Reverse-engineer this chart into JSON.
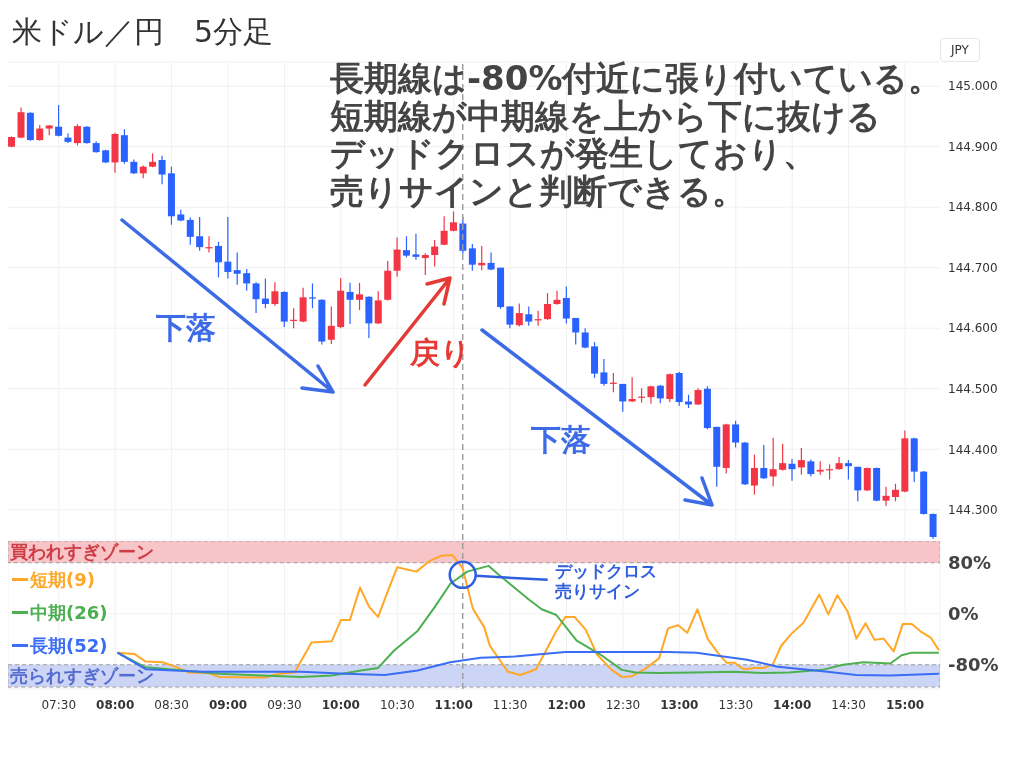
{
  "chart_data": [
    {
      "type": "candlestick",
      "title": "米ドル／円　5分足",
      "ylabel": "JPY",
      "annotations": [
        "長期線は-80%付近に張り付いている。",
        "短期線が中期線を上から下に抜ける",
        "デッドクロスが発生しており、",
        "売りサインと判断できる。",
        "下落",
        "戻り",
        "下落"
      ],
      "x": [
        7.083,
        7.167,
        7.25,
        7.333,
        7.417,
        7.5,
        7.583,
        7.667,
        7.75,
        7.833,
        7.917,
        8.0,
        8.083,
        8.167,
        8.25,
        8.333,
        8.417,
        8.5,
        8.583,
        8.667,
        8.75,
        8.833,
        8.917,
        9.0,
        9.083,
        9.167,
        9.25,
        9.333,
        9.417,
        9.5,
        9.583,
        9.667,
        9.75,
        9.833,
        9.917,
        10.0,
        10.083,
        10.167,
        10.25,
        10.333,
        10.417,
        10.5,
        10.583,
        10.667,
        10.75,
        10.833,
        10.917,
        11.0,
        11.083,
        11.167,
        11.25,
        11.333,
        11.417,
        11.5,
        11.583,
        11.667,
        11.75,
        11.833,
        11.917,
        12.0,
        12.083,
        12.167,
        12.25,
        12.333,
        12.417,
        12.5,
        12.583,
        12.667,
        12.75,
        12.833,
        12.917,
        13.0,
        13.083,
        13.167,
        13.25,
        13.333,
        13.417,
        13.5,
        13.583,
        13.667,
        13.75,
        13.833,
        13.917,
        14.0,
        14.083,
        14.167,
        14.25,
        14.333,
        14.417,
        14.5,
        14.583,
        14.667,
        14.75,
        14.833,
        14.917,
        15.0,
        15.083,
        15.167,
        15.25
      ],
      "ohlc": [
        [
          144.9,
          144.917,
          144.899,
          144.916
        ],
        [
          144.915,
          144.965,
          144.914,
          144.957
        ],
        [
          144.956,
          144.957,
          144.91,
          144.911
        ],
        [
          144.911,
          144.936,
          144.91,
          144.93
        ],
        [
          144.93,
          144.936,
          144.919,
          144.935
        ],
        [
          144.933,
          144.969,
          144.917,
          144.918
        ],
        [
          144.915,
          144.922,
          144.906,
          144.908
        ],
        [
          144.906,
          144.937,
          144.902,
          144.934
        ],
        [
          144.933,
          144.934,
          144.905,
          144.906
        ],
        [
          144.906,
          144.909,
          144.89,
          144.891
        ],
        [
          144.894,
          144.895,
          144.873,
          144.874
        ],
        [
          144.874,
          144.923,
          144.857,
          144.921
        ],
        [
          144.919,
          144.929,
          144.872,
          144.875
        ],
        [
          144.875,
          144.879,
          144.855,
          144.856
        ],
        [
          144.856,
          144.869,
          144.848,
          144.867
        ],
        [
          144.867,
          144.889,
          144.866,
          144.875
        ],
        [
          144.878,
          144.885,
          144.838,
          144.854
        ],
        [
          144.856,
          144.867,
          144.771,
          144.785
        ],
        [
          144.788,
          144.796,
          144.777,
          144.778
        ],
        [
          144.779,
          144.783,
          144.738,
          144.751
        ],
        [
          144.752,
          144.784,
          144.728,
          144.734
        ],
        [
          144.732,
          144.752,
          144.725,
          144.734
        ],
        [
          144.736,
          144.743,
          144.684,
          144.709
        ],
        [
          144.71,
          144.784,
          144.682,
          144.693
        ],
        [
          144.696,
          144.725,
          144.672,
          144.69
        ],
        [
          144.691,
          144.698,
          144.662,
          144.674
        ],
        [
          144.674,
          144.676,
          144.625,
          144.648
        ],
        [
          144.649,
          144.682,
          144.633,
          144.64
        ],
        [
          144.64,
          144.676,
          144.637,
          144.661
        ],
        [
          144.66,
          144.661,
          144.602,
          144.611
        ],
        [
          144.613,
          144.633,
          144.6,
          144.614
        ],
        [
          144.611,
          144.667,
          144.61,
          144.651
        ],
        [
          144.651,
          144.674,
          144.633,
          144.649
        ],
        [
          144.647,
          144.648,
          144.573,
          144.578
        ],
        [
          144.581,
          144.636,
          144.574,
          144.604
        ],
        [
          144.602,
          144.683,
          144.6,
          144.662
        ],
        [
          144.66,
          144.675,
          144.607,
          144.647
        ],
        [
          144.647,
          144.675,
          144.63,
          144.656
        ],
        [
          144.652,
          144.653,
          144.584,
          144.608
        ],
        [
          144.608,
          144.661,
          144.607,
          144.646
        ],
        [
          144.647,
          144.711,
          144.646,
          144.695
        ],
        [
          144.695,
          144.75,
          144.685,
          144.73
        ],
        [
          144.729,
          144.752,
          144.717,
          144.72
        ],
        [
          144.722,
          144.756,
          144.713,
          144.718
        ],
        [
          144.716,
          144.724,
          144.688,
          144.721
        ],
        [
          144.721,
          144.746,
          144.702,
          144.735
        ],
        [
          144.738,
          144.785,
          144.737,
          144.761
        ],
        [
          144.761,
          144.793,
          144.76,
          144.775
        ],
        [
          144.773,
          144.784,
          144.723,
          144.728
        ],
        [
          144.732,
          144.739,
          144.695,
          144.705
        ],
        [
          144.704,
          144.736,
          144.696,
          144.708
        ],
        [
          144.708,
          144.725,
          144.696,
          144.697
        ],
        [
          144.7,
          144.7,
          144.632,
          144.635
        ],
        [
          144.636,
          144.636,
          144.6,
          144.606
        ],
        [
          144.605,
          144.641,
          144.603,
          144.625
        ],
        [
          144.623,
          144.636,
          144.604,
          144.611
        ],
        [
          144.613,
          144.629,
          144.604,
          144.615
        ],
        [
          144.615,
          144.658,
          144.614,
          144.64
        ],
        [
          144.64,
          144.662,
          144.639,
          144.647
        ],
        [
          144.65,
          144.669,
          144.608,
          144.616
        ],
        [
          144.617,
          144.617,
          144.573,
          144.593
        ],
        [
          144.593,
          144.6,
          144.567,
          144.568
        ],
        [
          144.57,
          144.577,
          144.518,
          144.525
        ],
        [
          144.527,
          144.549,
          144.505,
          144.508
        ],
        [
          144.509,
          144.526,
          144.494,
          144.51
        ],
        [
          144.508,
          144.508,
          144.462,
          144.479
        ],
        [
          144.479,
          144.519,
          144.478,
          144.483
        ],
        [
          144.485,
          144.501,
          144.477,
          144.487
        ],
        [
          144.486,
          144.505,
          144.475,
          144.504
        ],
        [
          144.505,
          144.506,
          144.476,
          144.484
        ],
        [
          144.483,
          144.525,
          144.478,
          144.524
        ],
        [
          144.526,
          144.528,
          144.472,
          144.478
        ],
        [
          144.479,
          144.49,
          144.468,
          144.474
        ],
        [
          144.474,
          144.501,
          144.473,
          144.498
        ],
        [
          144.5,
          144.504,
          144.433,
          144.435
        ],
        [
          144.437,
          144.437,
          144.338,
          144.371
        ],
        [
          144.369,
          144.442,
          144.36,
          144.441
        ],
        [
          144.441,
          144.447,
          144.403,
          144.411
        ],
        [
          144.411,
          144.412,
          144.341,
          144.342
        ],
        [
          144.34,
          144.391,
          144.325,
          144.369
        ],
        [
          144.369,
          144.407,
          144.351,
          144.352
        ],
        [
          144.355,
          144.419,
          144.339,
          144.367
        ],
        [
          144.366,
          144.409,
          144.365,
          144.377
        ],
        [
          144.376,
          144.384,
          144.348,
          144.367
        ],
        [
          144.37,
          144.402,
          144.358,
          144.382
        ],
        [
          144.38,
          144.383,
          144.355,
          144.359
        ],
        [
          144.363,
          144.38,
          144.358,
          144.366
        ],
        [
          144.365,
          144.375,
          144.35,
          144.367
        ],
        [
          144.367,
          144.387,
          144.366,
          144.377
        ],
        [
          144.377,
          144.382,
          144.35,
          144.372
        ],
        [
          144.371,
          144.371,
          144.314,
          144.332
        ],
        [
          144.332,
          144.37,
          144.331,
          144.369
        ],
        [
          144.369,
          144.37,
          144.314,
          144.315
        ],
        [
          144.315,
          144.338,
          144.306,
          144.323
        ],
        [
          144.321,
          144.343,
          144.314,
          144.333
        ],
        [
          144.33,
          144.431,
          144.329,
          144.418
        ],
        [
          144.418,
          144.419,
          144.346,
          144.363
        ],
        [
          144.363,
          144.364,
          144.292,
          144.293
        ],
        [
          144.293,
          144.294,
          144.252,
          144.255
        ]
      ],
      "colors": [
        "#f23645",
        "#f23645",
        "#2962ff",
        "#f23645",
        "#f23645",
        "#2962ff",
        "#2962ff",
        "#f23645",
        "#2962ff",
        "#2962ff",
        "#2962ff",
        "#f23645",
        "#2962ff",
        "#2962ff",
        "#f23645",
        "#f23645",
        "#2962ff",
        "#2962ff",
        "#2962ff",
        "#2962ff",
        "#2962ff",
        "#f23645",
        "#2962ff",
        "#2962ff",
        "#2962ff",
        "#2962ff",
        "#2962ff",
        "#2962ff",
        "#f23645",
        "#2962ff",
        "#f23645",
        "#f23645",
        "#2962ff",
        "#2962ff",
        "#f23645",
        "#f23645",
        "#2962ff",
        "#f23645",
        "#2962ff",
        "#f23645",
        "#f23645",
        "#f23645",
        "#2962ff",
        "#2962ff",
        "#f23645",
        "#f23645",
        "#f23645",
        "#f23645",
        "#2962ff",
        "#2962ff",
        "#f23645",
        "#2962ff",
        "#2962ff",
        "#2962ff",
        "#f23645",
        "#2962ff",
        "#f23645",
        "#f23645",
        "#f23645",
        "#2962ff",
        "#2962ff",
        "#2962ff",
        "#2962ff",
        "#2962ff",
        "#f23645",
        "#2962ff",
        "#f23645",
        "#f23645",
        "#f23645",
        "#2962ff",
        "#f23645",
        "#2962ff",
        "#2962ff",
        "#f23645",
        "#2962ff",
        "#2962ff",
        "#f23645",
        "#2962ff",
        "#2962ff",
        "#f23645",
        "#2962ff",
        "#f23645",
        "#f23645",
        "#2962ff",
        "#f23645",
        "#2962ff",
        "#f23645",
        "#f23645",
        "#f23645",
        "#2962ff",
        "#2962ff",
        "#f23645",
        "#2962ff",
        "#f23645",
        "#f23645",
        "#f23645",
        "#2962ff",
        "#2962ff",
        "#2962ff"
      ],
      "xlim": [
        7.05,
        15.31
      ],
      "ylim": [
        144.25,
        145.04
      ],
      "xticks": [
        7.5,
        8,
        8.5,
        9,
        9.5,
        10,
        10.5,
        11,
        11.5,
        12,
        12.5,
        13,
        13.5,
        14,
        14.5,
        15
      ],
      "yticks": [
        {
          "value": 144.3,
          "label": "144.300"
        },
        {
          "value": 144.4,
          "label": "144.400"
        },
        {
          "value": 144.5,
          "label": "144.500"
        },
        {
          "value": 144.6,
          "label": "144.600"
        },
        {
          "value": 144.7,
          "label": "144.700"
        },
        {
          "value": 144.8,
          "label": "144.800"
        },
        {
          "value": 144.9,
          "label": "144.900"
        },
        {
          "value": 145.0,
          "label": "145.000"
        }
      ],
      "tick_labels": "y",
      "grid": true,
      "ref_lines": [
        {
          "axis": "x",
          "value": 11.08,
          "line_style": "dashed",
          "color": "#9e9e9e"
        }
      ]
    },
    {
      "type": "line",
      "legend": "top left",
      "marker": "none",
      "line_style": "solid",
      "grid": true,
      "series": [
        {
          "name": "短期(9)",
          "color": "#ffa726",
          "x": [
            8.02,
            8.17,
            8.27,
            8.42,
            8.53,
            8.65,
            8.83,
            8.92,
            9.33,
            9.45,
            9.59,
            9.74,
            9.92,
            10.0,
            10.08,
            10.17,
            10.25,
            10.33,
            10.42,
            10.5,
            10.67,
            10.78,
            10.89,
            10.99,
            11.08,
            11.17,
            11.27,
            11.32,
            11.48,
            11.59,
            11.73,
            11.91,
            11.99,
            12.07,
            12.17,
            12.27,
            12.4,
            12.49,
            12.58,
            12.7,
            12.82,
            12.9,
            12.99,
            13.07,
            13.16,
            13.25,
            13.34,
            13.42,
            13.49,
            13.57,
            13.67,
            13.75,
            13.83,
            13.9,
            13.99,
            14.1,
            14.24,
            14.32,
            14.4,
            14.49,
            14.57,
            14.65,
            14.73,
            14.81,
            14.9,
            14.98,
            15.06,
            15.14,
            15.23,
            15.3
          ],
          "values": [
            -61,
            -63,
            -75,
            -76,
            -83,
            -92,
            -93,
            -99,
            -100,
            -94,
            -92,
            -45,
            -43,
            -10,
            -10,
            41,
            11,
            -5,
            37,
            73,
            66,
            82,
            91,
            92,
            71,
            8,
            -21,
            -50,
            -91,
            -96,
            -87,
            -27,
            -5,
            -5,
            -25,
            -64,
            -88,
            -99,
            -98,
            -86,
            -70,
            -23,
            -18,
            -30,
            7,
            -39,
            -61,
            -77,
            -77,
            -87,
            -85,
            -85,
            -79,
            -51,
            -32,
            -14,
            30,
            -1,
            29,
            4,
            -39,
            -15,
            -41,
            -39,
            -59,
            -16,
            -16,
            -28,
            -38,
            -57
          ]
        },
        {
          "name": "中期(26)",
          "color": "#4caf50",
          "x": [
            8.02,
            8.27,
            8.53,
            8.92,
            9.3,
            9.65,
            9.92,
            10.18,
            10.33,
            10.47,
            10.68,
            10.83,
            10.97,
            11.12,
            11.31,
            11.4,
            11.51,
            11.66,
            11.78,
            11.91,
            12.09,
            12.3,
            12.49,
            12.61,
            12.82,
            13.12,
            13.49,
            13.73,
            13.97,
            14.27,
            14.45,
            14.63,
            14.87,
            14.97,
            15.06,
            15.3
          ],
          "values": [
            -61,
            -84,
            -88,
            -94,
            -97,
            -99,
            -97,
            -89,
            -85,
            -58,
            -27,
            10,
            47,
            66,
            75,
            61,
            45,
            23,
            7,
            -2,
            -42,
            -64,
            -88,
            -92,
            -93,
            -92,
            -91,
            -93,
            -92,
            -88,
            -80,
            -76,
            -78,
            -65,
            -61,
            -61
          ]
        },
        {
          "name": "長期(52)",
          "color": "#3b6cf5",
          "x": [
            8.02,
            8.27,
            8.77,
            9.65,
            10.04,
            10.39,
            10.68,
            10.97,
            11.24,
            11.54,
            11.99,
            12.9,
            13.15,
            13.6,
            13.87,
            14.27,
            14.57,
            14.87,
            15.3
          ],
          "values": [
            -61,
            -87,
            -91,
            -91,
            -94,
            -96,
            -89,
            -76,
            -69,
            -67,
            -60,
            -60,
            -61,
            -72,
            -83,
            -90,
            -96,
            -97,
            -94
          ]
        }
      ],
      "xlim": [
        7.05,
        15.31
      ],
      "ylim": [
        -118,
        114
      ],
      "xticks": [
        {
          "value": 7.5,
          "label": "07:30"
        },
        {
          "value": 8,
          "label": "08:00"
        },
        {
          "value": 8.5,
          "label": "08:30"
        },
        {
          "value": 9,
          "label": "09:00"
        },
        {
          "value": 9.5,
          "label": "09:30"
        },
        {
          "value": 10,
          "label": "10:00"
        },
        {
          "value": 10.5,
          "label": "10:30"
        },
        {
          "value": 11,
          "label": "11:00"
        },
        {
          "value": 11.5,
          "label": "11:30"
        },
        {
          "value": 12,
          "label": "12:00"
        },
        {
          "value": 12.5,
          "label": "12:30"
        },
        {
          "value": 13,
          "label": "13:00"
        },
        {
          "value": 13.5,
          "label": "13:30"
        },
        {
          "value": 14,
          "label": "14:00"
        },
        {
          "value": 14.5,
          "label": "14:30"
        },
        {
          "value": 15,
          "label": "15:00"
        }
      ],
      "yticks": [
        {
          "value": 80,
          "label": "80%"
        },
        {
          "value": 0,
          "label": "0%"
        },
        {
          "value": -80,
          "label": "-80%"
        }
      ],
      "bands": [
        {
          "axis": "y",
          "from": 80,
          "to": 114,
          "label": "買われすぎゾーン",
          "color": "#f7c5c8"
        },
        {
          "axis": "y",
          "from": -115,
          "to": -80,
          "label": "売られすぎゾーン",
          "color": "#cdd5f7"
        }
      ],
      "ref_lines": [
        {
          "axis": "x",
          "value": 11.08,
          "line_style": "dashed",
          "color": "#9e9e9e"
        }
      ],
      "annotations": [
        "デッドクロス売りサイン"
      ]
    }
  ]
}
